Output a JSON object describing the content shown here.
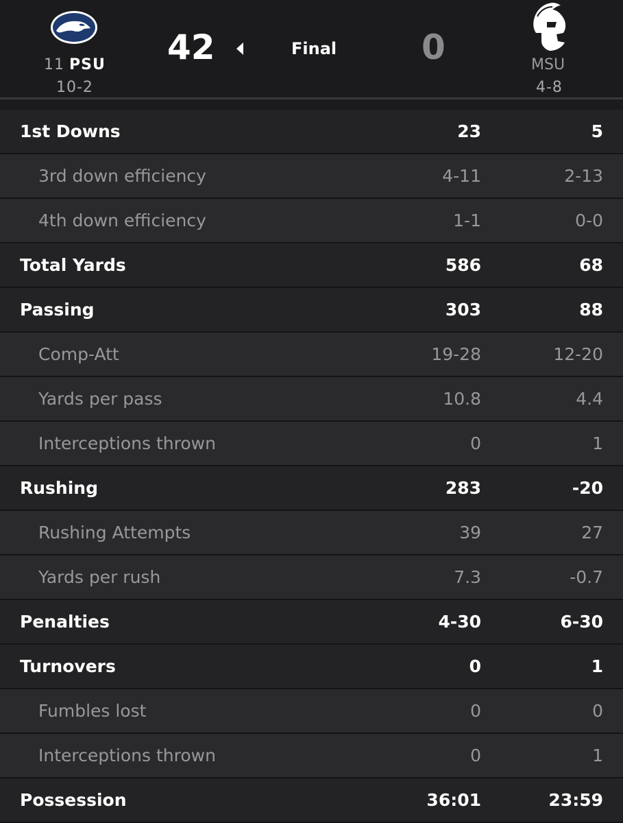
{
  "game": {
    "status": "Final",
    "home": {
      "rank": "11",
      "abbr": "PSU",
      "record": "10-2",
      "score": "42",
      "logo": "nittany-lion-icon",
      "winner": true
    },
    "away": {
      "rank": "",
      "abbr": "MSU",
      "record": "4-8",
      "score": "0",
      "logo": "spartan-helmet-icon",
      "winner": false
    }
  },
  "colors": {
    "background": "#1d1d1f",
    "header": "#1b1b1d",
    "row": "#232325",
    "subrow": "#2a2a2c",
    "psu_blue": "#1e3a6e"
  },
  "stats": [
    {
      "label": "1st Downs",
      "home": "23",
      "away": "5",
      "type": "main"
    },
    {
      "label": "3rd down efficiency",
      "home": "4-11",
      "away": "2-13",
      "type": "sub"
    },
    {
      "label": "4th down efficiency",
      "home": "1-1",
      "away": "0-0",
      "type": "sub"
    },
    {
      "label": "Total Yards",
      "home": "586",
      "away": "68",
      "type": "main"
    },
    {
      "label": "Passing",
      "home": "303",
      "away": "88",
      "type": "main"
    },
    {
      "label": "Comp-Att",
      "home": "19-28",
      "away": "12-20",
      "type": "sub"
    },
    {
      "label": "Yards per pass",
      "home": "10.8",
      "away": "4.4",
      "type": "sub"
    },
    {
      "label": "Interceptions thrown",
      "home": "0",
      "away": "1",
      "type": "sub"
    },
    {
      "label": "Rushing",
      "home": "283",
      "away": "-20",
      "type": "main"
    },
    {
      "label": "Rushing Attempts",
      "home": "39",
      "away": "27",
      "type": "sub"
    },
    {
      "label": "Yards per rush",
      "home": "7.3",
      "away": "-0.7",
      "type": "sub"
    },
    {
      "label": "Penalties",
      "home": "4-30",
      "away": "6-30",
      "type": "main"
    },
    {
      "label": "Turnovers",
      "home": "0",
      "away": "1",
      "type": "main"
    },
    {
      "label": "Fumbles lost",
      "home": "0",
      "away": "0",
      "type": "sub"
    },
    {
      "label": "Interceptions thrown",
      "home": "0",
      "away": "1",
      "type": "sub"
    },
    {
      "label": "Possession",
      "home": "36:01",
      "away": "23:59",
      "type": "main"
    }
  ]
}
